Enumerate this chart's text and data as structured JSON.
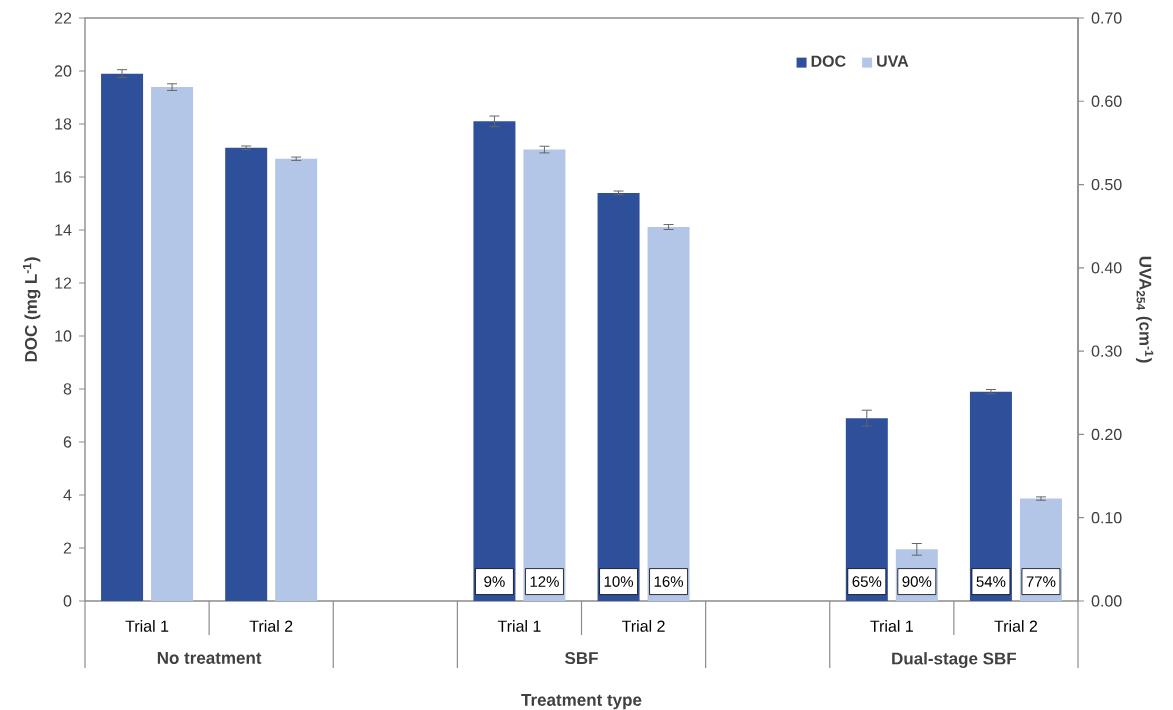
{
  "chart_data": {
    "type": "bar",
    "xlabel": "Treatment type",
    "ylabel": "DOC (mg L$^{-1}$)",
    "y2label": "UVA$_{254}$ (cm$^{-1}$)",
    "categories": [
      "Trial 1",
      "Trial 2",
      null,
      "Trial 1",
      "Trial 2",
      null,
      "Trial 1",
      "Trial 2"
    ],
    "series": [
      {
        "name": "DOC",
        "color": "#2e4f9a",
        "values": [
          19.9,
          17.1,
          null,
          18.1,
          15.4,
          null,
          6.9,
          7.9
        ],
        "errors": [
          0.15,
          0.07,
          null,
          0.2,
          0.07,
          null,
          0.3,
          0.08
        ]
      },
      {
        "name": "UVA",
        "color": "#b3c6e7",
        "axis": "y2",
        "values": [
          0.617,
          0.531,
          null,
          0.542,
          0.449,
          null,
          0.062,
          0.123
        ],
        "errors": [
          0.004,
          0.002,
          null,
          0.004,
          0.003,
          null,
          0.007,
          0.002
        ]
      }
    ],
    "annotations": [
      "No  treatment",
      "SBF",
      "Dual-stage SBF",
      "9%",
      "12%",
      "10%",
      "16%",
      "65%",
      "90%",
      "54%",
      "77%"
    ],
    "ylim": [
      0,
      22
    ],
    "yticks": [
      0,
      2,
      4,
      6,
      8,
      10,
      12,
      14,
      16,
      18,
      20,
      22
    ],
    "y2lim": [
      0,
      0.7
    ],
    "y2ticks": [
      {
        "value": 0,
        "label": "0.00"
      },
      {
        "value": 0.1,
        "label": "0.10"
      },
      {
        "value": 0.2,
        "label": "0.20"
      },
      {
        "value": 0.3,
        "label": "0.30"
      },
      {
        "value": 0.4,
        "label": "0.40"
      },
      {
        "value": 0.5,
        "label": "0.50"
      },
      {
        "value": 0.6,
        "label": "0.60"
      },
      {
        "value": 0.7,
        "label": "0.70"
      }
    ],
    "legend": "top right",
    "grid": false
  }
}
